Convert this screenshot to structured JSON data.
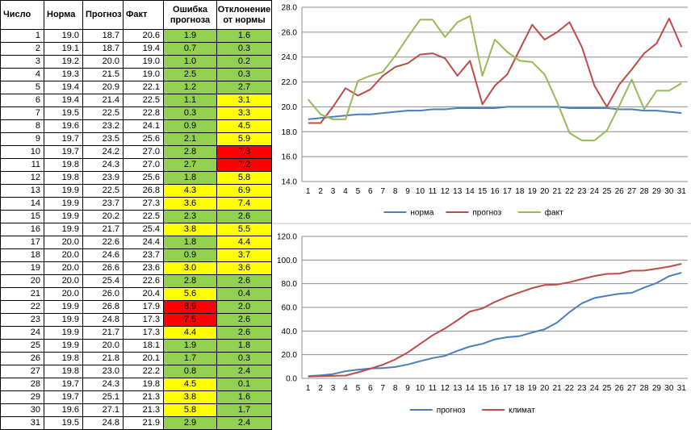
{
  "table": {
    "headers": [
      "Число",
      "Норма",
      "Прогноз",
      "Факт",
      "Ошибка прогноза",
      "Отклонение от нормы"
    ],
    "rows": [
      {
        "day": "1",
        "norm": "19.0",
        "forecast": "18.7",
        "fact": "20.6",
        "error": "1.9",
        "dev": "1.6",
        "error_color": "g",
        "dev_color": "g"
      },
      {
        "day": "2",
        "norm": "19.1",
        "forecast": "18.7",
        "fact": "19.4",
        "error": "0.7",
        "dev": "0.3",
        "error_color": "g",
        "dev_color": "g"
      },
      {
        "day": "3",
        "norm": "19.2",
        "forecast": "20.0",
        "fact": "19.0",
        "error": "1.0",
        "dev": "0.2",
        "error_color": "g",
        "dev_color": "g"
      },
      {
        "day": "4",
        "norm": "19.3",
        "forecast": "21.5",
        "fact": "19.0",
        "error": "2.5",
        "dev": "0.3",
        "error_color": "g",
        "dev_color": "g"
      },
      {
        "day": "5",
        "norm": "19.4",
        "forecast": "20.9",
        "fact": "22.1",
        "error": "1.2",
        "dev": "2.7",
        "error_color": "g",
        "dev_color": "g"
      },
      {
        "day": "6",
        "norm": "19.4",
        "forecast": "21.4",
        "fact": "22.5",
        "error": "1.1",
        "dev": "3.1",
        "error_color": "g",
        "dev_color": "y"
      },
      {
        "day": "7",
        "norm": "19.5",
        "forecast": "22.5",
        "fact": "22.8",
        "error": "0.3",
        "dev": "3.3",
        "error_color": "g",
        "dev_color": "y"
      },
      {
        "day": "8",
        "norm": "19.6",
        "forecast": "23.2",
        "fact": "24.1",
        "error": "0.9",
        "dev": "4.5",
        "error_color": "g",
        "dev_color": "y"
      },
      {
        "day": "9",
        "norm": "19.7",
        "forecast": "23.5",
        "fact": "25.6",
        "error": "2.1",
        "dev": "5.9",
        "error_color": "g",
        "dev_color": "y"
      },
      {
        "day": "10",
        "norm": "19.7",
        "forecast": "24.2",
        "fact": "27.0",
        "error": "2.8",
        "dev": "7.3",
        "error_color": "g",
        "dev_color": "r"
      },
      {
        "day": "11",
        "norm": "19.8",
        "forecast": "24.3",
        "fact": "27.0",
        "error": "2.7",
        "dev": "7.2",
        "error_color": "g",
        "dev_color": "r"
      },
      {
        "day": "12",
        "norm": "19.8",
        "forecast": "23.9",
        "fact": "25.6",
        "error": "1.8",
        "dev": "5.8",
        "error_color": "g",
        "dev_color": "y"
      },
      {
        "day": "13",
        "norm": "19.9",
        "forecast": "22.5",
        "fact": "26.8",
        "error": "4.3",
        "dev": "6.9",
        "error_color": "y",
        "dev_color": "y"
      },
      {
        "day": "14",
        "norm": "19.9",
        "forecast": "23.7",
        "fact": "27.3",
        "error": "3.6",
        "dev": "7.4",
        "error_color": "y",
        "dev_color": "y"
      },
      {
        "day": "15",
        "norm": "19.9",
        "forecast": "20.2",
        "fact": "22.5",
        "error": "2.3",
        "dev": "2.6",
        "error_color": "g",
        "dev_color": "g"
      },
      {
        "day": "16",
        "norm": "19.9",
        "forecast": "21.7",
        "fact": "25.4",
        "error": "3.8",
        "dev": "5.5",
        "error_color": "y",
        "dev_color": "y"
      },
      {
        "day": "17",
        "norm": "20.0",
        "forecast": "22.6",
        "fact": "24.4",
        "error": "1.8",
        "dev": "4.4",
        "error_color": "g",
        "dev_color": "y"
      },
      {
        "day": "18",
        "norm": "20.0",
        "forecast": "24.6",
        "fact": "23.7",
        "error": "0.9",
        "dev": "3.7",
        "error_color": "g",
        "dev_color": "y"
      },
      {
        "day": "19",
        "norm": "20.0",
        "forecast": "26.6",
        "fact": "23.6",
        "error": "3.0",
        "dev": "3.6",
        "error_color": "y",
        "dev_color": "y"
      },
      {
        "day": "20",
        "norm": "20.0",
        "forecast": "25.4",
        "fact": "22.6",
        "error": "2.8",
        "dev": "2.6",
        "error_color": "g",
        "dev_color": "g"
      },
      {
        "day": "21",
        "norm": "20.0",
        "forecast": "26.0",
        "fact": "20.4",
        "error": "5.6",
        "dev": "0.4",
        "error_color": "y",
        "dev_color": "g"
      },
      {
        "day": "22",
        "norm": "19.9",
        "forecast": "26.8",
        "fact": "17.9",
        "error": "8.9",
        "dev": "2.0",
        "error_color": "r",
        "dev_color": "g"
      },
      {
        "day": "23",
        "norm": "19.9",
        "forecast": "24.8",
        "fact": "17.3",
        "error": "7.5",
        "dev": "2.6",
        "error_color": "r",
        "dev_color": "g"
      },
      {
        "day": "24",
        "norm": "19.9",
        "forecast": "21.7",
        "fact": "17.3",
        "error": "4.4",
        "dev": "2.6",
        "error_color": "y",
        "dev_color": "g"
      },
      {
        "day": "25",
        "norm": "19.9",
        "forecast": "20.0",
        "fact": "18.1",
        "error": "1.9",
        "dev": "1.8",
        "error_color": "g",
        "dev_color": "g"
      },
      {
        "day": "26",
        "norm": "19.8",
        "forecast": "21.8",
        "fact": "20.1",
        "error": "1.7",
        "dev": "0.3",
        "error_color": "g",
        "dev_color": "g"
      },
      {
        "day": "27",
        "norm": "19.8",
        "forecast": "23.0",
        "fact": "22.2",
        "error": "0.8",
        "dev": "2.4",
        "error_color": "g",
        "dev_color": "g"
      },
      {
        "day": "28",
        "norm": "19.7",
        "forecast": "24.3",
        "fact": "19.8",
        "error": "4.5",
        "dev": "0.1",
        "error_color": "y",
        "dev_color": "g"
      },
      {
        "day": "29",
        "norm": "19.7",
        "forecast": "25.1",
        "fact": "21.3",
        "error": "3.8",
        "dev": "1.6",
        "error_color": "y",
        "dev_color": "g"
      },
      {
        "day": "30",
        "norm": "19.6",
        "forecast": "27.1",
        "fact": "21.3",
        "error": "5.8",
        "dev": "1.7",
        "error_color": "y",
        "dev_color": "g"
      },
      {
        "day": "31",
        "norm": "19.5",
        "forecast": "24.8",
        "fact": "21.9",
        "error": "2.9",
        "dev": "2.4",
        "error_color": "g",
        "dev_color": "g"
      }
    ]
  },
  "colors": {
    "g": "#92d050",
    "y": "#ffff00",
    "r": "#ff0000",
    "blue": "#4a7ebb",
    "red": "#be4b48",
    "green": "#98b954"
  },
  "chart_data": [
    {
      "type": "line",
      "x": [
        1,
        2,
        3,
        4,
        5,
        6,
        7,
        8,
        9,
        10,
        11,
        12,
        13,
        14,
        15,
        16,
        17,
        18,
        19,
        20,
        21,
        22,
        23,
        24,
        25,
        26,
        27,
        28,
        29,
        30,
        31
      ],
      "x_tick_labels": [
        "1",
        "2",
        "3",
        "4",
        "5",
        "6",
        "7",
        "8",
        "9",
        "10",
        "11",
        "12",
        "13",
        "14",
        "15",
        "16",
        "17",
        "18",
        "19",
        "20",
        "21",
        "22",
        "23",
        "24",
        "25",
        "26",
        "27",
        "28",
        "29",
        "30",
        "31"
      ],
      "ylim": [
        14,
        28
      ],
      "y_ticks": [
        14,
        16,
        18,
        20,
        22,
        24,
        26,
        28
      ],
      "y_tick_labels": [
        "14.0",
        "16.0",
        "18.0",
        "20.0",
        "22.0",
        "24.0",
        "26.0",
        "28.0"
      ],
      "grid": true,
      "legend": "bottom",
      "series": [
        {
          "name": "норма",
          "color": "#4a7ebb",
          "values": [
            19.0,
            19.1,
            19.2,
            19.3,
            19.4,
            19.4,
            19.5,
            19.6,
            19.7,
            19.7,
            19.8,
            19.8,
            19.9,
            19.9,
            19.9,
            19.9,
            20.0,
            20.0,
            20.0,
            20.0,
            20.0,
            19.9,
            19.9,
            19.9,
            19.9,
            19.8,
            19.8,
            19.7,
            19.7,
            19.6,
            19.5
          ]
        },
        {
          "name": "прогноз",
          "color": "#be4b48",
          "values": [
            18.7,
            18.7,
            20.0,
            21.5,
            20.9,
            21.4,
            22.5,
            23.2,
            23.5,
            24.2,
            24.3,
            23.9,
            22.5,
            23.7,
            20.2,
            21.7,
            22.6,
            24.6,
            26.6,
            25.4,
            26.0,
            26.8,
            24.8,
            21.7,
            20.0,
            21.8,
            23.0,
            24.3,
            25.1,
            27.1,
            24.8
          ]
        },
        {
          "name": "факт",
          "color": "#98b954",
          "values": [
            20.6,
            19.4,
            19.0,
            19.0,
            22.1,
            22.5,
            22.8,
            24.1,
            25.6,
            27.0,
            27.0,
            25.6,
            26.8,
            27.3,
            22.5,
            25.4,
            24.4,
            23.7,
            23.6,
            22.6,
            20.4,
            17.9,
            17.3,
            17.3,
            18.1,
            20.1,
            22.2,
            19.8,
            21.3,
            21.3,
            21.9
          ]
        }
      ]
    },
    {
      "type": "line",
      "x": [
        1,
        2,
        3,
        4,
        5,
        6,
        7,
        8,
        9,
        10,
        11,
        12,
        13,
        14,
        15,
        16,
        17,
        18,
        19,
        20,
        21,
        22,
        23,
        24,
        25,
        26,
        27,
        28,
        29,
        30,
        31
      ],
      "x_tick_labels": [
        "1",
        "2",
        "3",
        "4",
        "5",
        "6",
        "7",
        "8",
        "9",
        "10",
        "11",
        "12",
        "13",
        "14",
        "15",
        "16",
        "17",
        "18",
        "19",
        "20",
        "21",
        "22",
        "23",
        "24",
        "25",
        "26",
        "27",
        "28",
        "29",
        "30",
        "31"
      ],
      "ylim": [
        0,
        120
      ],
      "y_ticks": [
        0,
        20,
        40,
        60,
        80,
        100,
        120
      ],
      "y_tick_labels": [
        "0.0",
        "20.0",
        "40.0",
        "60.0",
        "80.0",
        "100.0",
        "120.0"
      ],
      "grid": true,
      "legend": "bottom",
      "series": [
        {
          "name": "прогноз",
          "color": "#4a7ebb",
          "values": [
            1.9,
            2.6,
            3.6,
            6.1,
            7.3,
            8.4,
            8.7,
            9.6,
            11.7,
            14.5,
            17.2,
            19.0,
            23.3,
            26.9,
            29.2,
            33.0,
            34.8,
            35.7,
            38.7,
            41.5,
            47.1,
            56.0,
            63.5,
            67.9,
            69.8,
            71.5,
            72.3,
            76.8,
            80.6,
            86.4,
            89.3
          ]
        },
        {
          "name": "климат",
          "color": "#be4b48",
          "values": [
            1.6,
            1.9,
            2.1,
            2.4,
            5.1,
            8.2,
            11.5,
            16.0,
            21.9,
            29.2,
            36.4,
            42.2,
            49.1,
            56.5,
            59.1,
            64.6,
            69.0,
            72.7,
            76.3,
            78.9,
            79.3,
            81.3,
            83.9,
            86.5,
            88.3,
            88.6,
            91.0,
            91.1,
            92.7,
            94.4,
            96.8
          ]
        }
      ]
    }
  ]
}
